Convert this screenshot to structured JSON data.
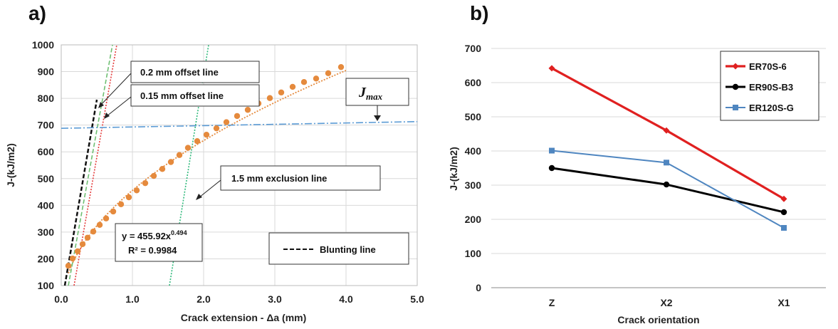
{
  "chart_data": [
    {
      "type": "scatter",
      "panel_label": "a)",
      "xlabel": "Crack extension - Δa (mm)",
      "ylabel": "J-(kJ/m2)",
      "xlim": [
        0,
        5
      ],
      "ylim": [
        100,
        1000
      ],
      "xticks": [
        "0.0",
        "1.0",
        "2.0",
        "3.0",
        "4.0",
        "5.0"
      ],
      "yticks": [
        "100",
        "200",
        "300",
        "400",
        "500",
        "600",
        "700",
        "800",
        "900",
        "1000"
      ],
      "grid": "major gridlines on both axes",
      "series": [
        {
          "kind": "points",
          "color": "#e58a3d",
          "x": [
            0.1,
            0.16,
            0.23,
            0.3,
            0.37,
            0.45,
            0.54,
            0.63,
            0.73,
            0.84,
            0.95,
            1.06,
            1.18,
            1.3,
            1.42,
            1.54,
            1.66,
            1.78,
            1.91,
            2.04,
            2.18,
            2.32,
            2.47,
            2.62,
            2.77,
            2.93,
            3.09,
            3.25,
            3.41,
            3.58,
            3.75,
            3.93
          ],
          "y": [
            174,
            201,
            228,
            255,
            279,
            302,
            327,
            351,
            377,
            404,
            430,
            456,
            483,
            510,
            536,
            562,
            588,
            615,
            640,
            664,
            688,
            711,
            734,
            757,
            781,
            801,
            822,
            843,
            861,
            874,
            894,
            917
          ]
        },
        {
          "kind": "power-fit",
          "color": "#e58a3d",
          "style": "dotted",
          "equation": "y = 455.92x",
          "exponent": "0.494",
          "r2": "R² = 0.9984",
          "coef": 455.92,
          "power": 0.494,
          "x_range": [
            0.1,
            4.0
          ]
        },
        {
          "kind": "line",
          "name": "Blunting line",
          "color": "#111111",
          "style": "dashed",
          "x": [
            0.05,
            0.5
          ],
          "y": [
            100,
            795
          ]
        },
        {
          "kind": "line",
          "name": "0.15 mm offset line",
          "color": "#e43b3b",
          "style": "dotted",
          "x": [
            0.18,
            0.78
          ],
          "y": [
            100,
            1000
          ]
        },
        {
          "kind": "line",
          "name": "0.2 mm offset line",
          "color": "#6fbf73",
          "style": "dashed",
          "x": [
            0.1,
            0.72
          ],
          "y": [
            100,
            1000
          ]
        },
        {
          "kind": "line",
          "name": "1.5 mm exclusion line",
          "color": "#2fb97b",
          "style": "dotted",
          "x": [
            1.52,
            2.07
          ],
          "y": [
            100,
            1000
          ]
        },
        {
          "kind": "line",
          "name": "Jmax",
          "color": "#5b9bd5",
          "style": "dash-dot",
          "x": [
            0,
            5
          ],
          "y": [
            688,
            713
          ]
        }
      ],
      "annotations": {
        "offset_02": "0.2 mm offset line",
        "offset_015": "0.15 mm offset line",
        "exclusion": "1.5 mm exclusion line",
        "jmax": "J",
        "jmax_sub": "max",
        "blunting": "Blunting line"
      }
    },
    {
      "type": "line",
      "panel_label": "b)",
      "xlabel": "Crack orientation",
      "ylabel": "J-(kJ/m2)",
      "categories": [
        "Z",
        "X2",
        "X1"
      ],
      "ylim": [
        0,
        700
      ],
      "yticks": [
        "0",
        "100",
        "200",
        "300",
        "400",
        "500",
        "600",
        "700"
      ],
      "grid": "horizontal gridlines",
      "legend": "top-right",
      "series": [
        {
          "name": "ER70S-6",
          "color": "#e02020",
          "marker": "diamond",
          "values": [
            642,
            460,
            260
          ]
        },
        {
          "name": "ER90S-B3",
          "color": "#000000",
          "marker": "circle",
          "values": [
            350,
            302,
            221
          ]
        },
        {
          "name": "ER120S-G",
          "color": "#4f86c0",
          "marker": "square",
          "values": [
            401,
            366,
            175
          ]
        }
      ]
    }
  ]
}
